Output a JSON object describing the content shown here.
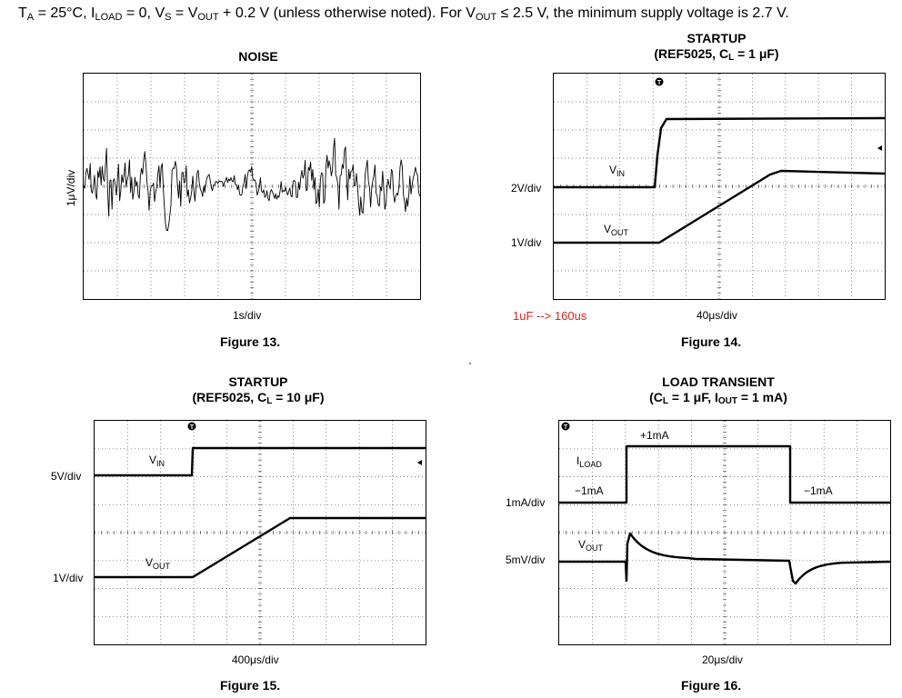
{
  "header": {
    "t": "T",
    "t_sub": "A",
    "t_rest": " = 25°C, I",
    "load_sub": "LOAD",
    "load_rest": " = 0, V",
    "s_sub": "S",
    "s_rest": " = V",
    "out_sub": "OUT",
    "out_rest": " + 0.2 V (unless otherwise noted). For V",
    "out_sub2": "OUT",
    "tail": " ≤ 2.5 V, the minimum supply voltage is 2.7 V."
  },
  "figures": [
    {
      "title": "NOISE",
      "ylabel": "1μV/div",
      "xlabel": "1s/div",
      "caption": "Figure 13."
    },
    {
      "title_line1": "STARTUP",
      "title_line2_a": "(REF5025, C",
      "title_line2_sub": "L",
      "title_line2_b": " = 1 μF)",
      "ch1_scale": "2V/div",
      "ch2_scale": "1V/div",
      "vin_label": "V",
      "vin_sub": "IN",
      "vout_label": "V",
      "vout_sub": "OUT",
      "xlabel": "40μs/div",
      "caption": "Figure 14.",
      "annotation": "1uF --> 160us",
      "annotation_color": "#e0201e"
    },
    {
      "title_line1": "STARTUP",
      "title_line2_a": "(REF5025, C",
      "title_line2_sub": "L",
      "title_line2_b": " = 10 μF)",
      "ch1_scale": "5V/div",
      "ch2_scale": "1V/div",
      "vin_label": "V",
      "vin_sub": "IN",
      "vout_label": "V",
      "vout_sub": "OUT",
      "xlabel": "400μs/div",
      "caption": "Figure 15."
    },
    {
      "title_line1": "LOAD TRANSIENT",
      "title_line2_a": "(C",
      "title_line2_sub": "L",
      "title_line2_b": " = 1 μF, I",
      "title_line2_sub2": "OUT",
      "title_line2_c": " = 1 mA)",
      "ch1_scale": "1mA/div",
      "ch2_scale": "5mV/div",
      "iload_label": "I",
      "iload_sub": "LOAD",
      "vout_label": "V",
      "vout_sub": "OUT",
      "step_up_label": "+1mA",
      "step_down_left": "−1mA",
      "step_down_right": "−1mA",
      "xlabel": "20μs/div",
      "caption": "Figure 16."
    }
  ]
}
